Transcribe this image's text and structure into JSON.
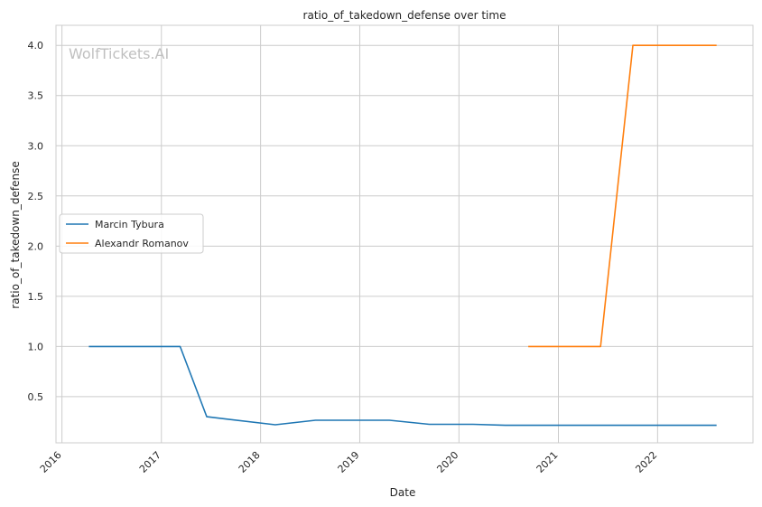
{
  "chart_data": {
    "type": "line",
    "title": "ratio_of_takedown_defense over time",
    "xlabel": "Date",
    "ylabel": "ratio_of_takedown_defense",
    "watermark": "WolfTickets.AI",
    "x_ticks": [
      "2016",
      "2017",
      "2018",
      "2019",
      "2020",
      "2021",
      "2022"
    ],
    "y_ticks": [
      "0.5",
      "1.0",
      "1.5",
      "2.0",
      "2.5",
      "3.0",
      "3.5",
      "4.0"
    ],
    "xlim": [
      "2015-12-10",
      "2022-12-18"
    ],
    "ylim": [
      0.04,
      4.2
    ],
    "grid": true,
    "legend_position": "center-left",
    "series": [
      {
        "name": "Marcin Tybura",
        "color": "#1f77b4",
        "points": [
          [
            "2016-04-09",
            1.0
          ],
          [
            "2017-03-11",
            1.0
          ],
          [
            "2017-06-17",
            0.3
          ],
          [
            "2018-02-24",
            0.22
          ],
          [
            "2018-07-22",
            0.265
          ],
          [
            "2019-04-20",
            0.265
          ],
          [
            "2019-09-14",
            0.225
          ],
          [
            "2020-02-22",
            0.225
          ],
          [
            "2020-06-20",
            0.215
          ],
          [
            "2022-08-06",
            0.215
          ]
        ]
      },
      {
        "name": "Alexandr Romanov",
        "color": "#ff7f0e",
        "points": [
          [
            "2020-09-12",
            1.0
          ],
          [
            "2021-06-05",
            1.0
          ],
          [
            "2021-10-02",
            4.0
          ],
          [
            "2022-08-06",
            4.0
          ]
        ]
      }
    ]
  }
}
